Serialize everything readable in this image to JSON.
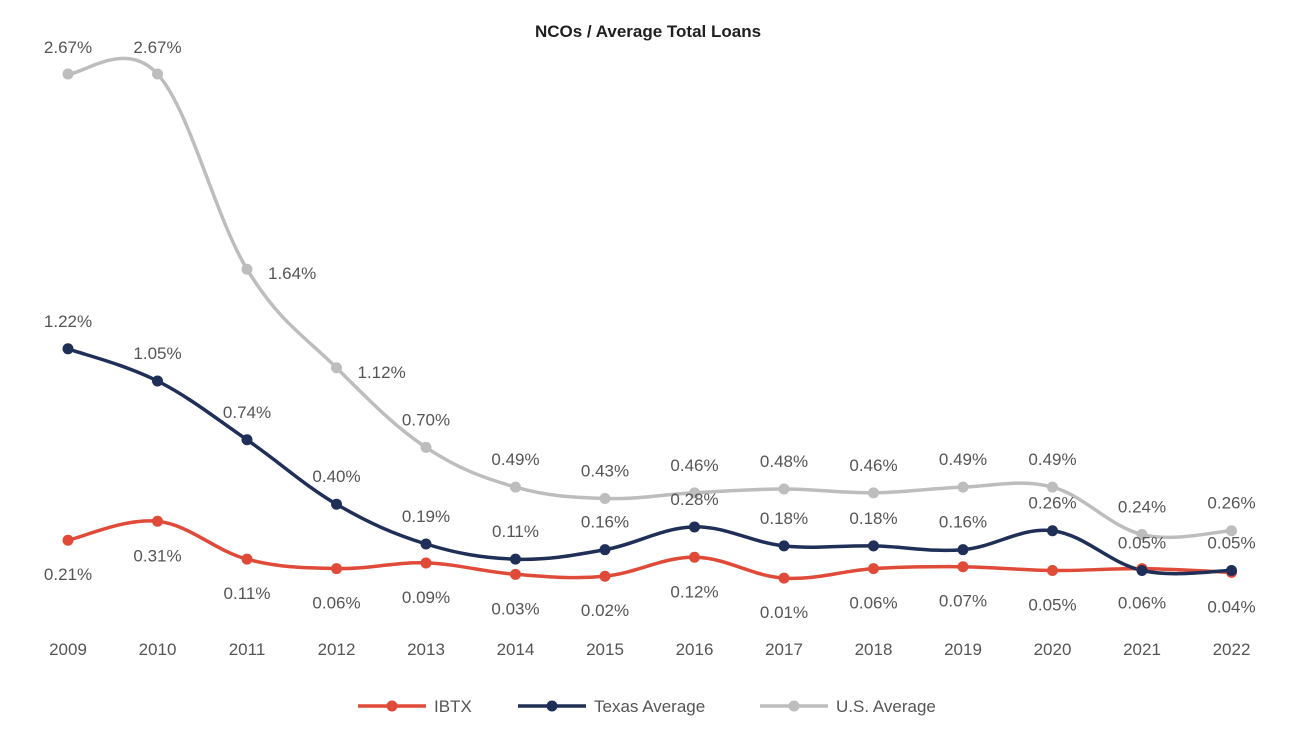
{
  "chart_data": {
    "type": "line",
    "title": "NCOs / Average Total Loans",
    "xlabel": "",
    "ylabel": "",
    "categories": [
      "2009",
      "2010",
      "2011",
      "2012",
      "2013",
      "2014",
      "2015",
      "2016",
      "2017",
      "2018",
      "2019",
      "2020",
      "2021",
      "2022"
    ],
    "ylim": [
      0,
      2.8
    ],
    "grid": false,
    "legend": "bottom",
    "series": [
      {
        "name": "IBTX",
        "color": "#e04a39",
        "values": [
          0.21,
          0.31,
          0.11,
          0.06,
          0.09,
          0.03,
          0.02,
          0.12,
          0.01,
          0.06,
          0.07,
          0.05,
          0.06,
          0.04
        ],
        "labels": [
          "0.21%",
          "0.31%",
          "0.11%",
          "0.06%",
          "0.09%",
          "0.03%",
          "0.02%",
          "0.12%",
          "0.01%",
          "0.06%",
          "0.07%",
          "0.05%",
          "0.06%",
          "0.04%"
        ]
      },
      {
        "name": "Texas Average",
        "color": "#1f2f57",
        "values": [
          1.22,
          1.05,
          0.74,
          0.4,
          0.19,
          0.11,
          0.16,
          0.28,
          0.18,
          0.18,
          0.16,
          0.26,
          0.05,
          0.05
        ],
        "labels": [
          "1.22%",
          "1.05%",
          "0.74%",
          "0.40%",
          "0.19%",
          "0.11%",
          "0.16%",
          "0.28%",
          "0.18%",
          "0.18%",
          "0.16%",
          "0.26%",
          "0.05%",
          "0.05%"
        ]
      },
      {
        "name": "U.S. Average",
        "color": "#bdbdbd",
        "values": [
          2.67,
          2.67,
          1.64,
          1.12,
          0.7,
          0.49,
          0.43,
          0.46,
          0.48,
          0.46,
          0.49,
          0.49,
          0.24,
          0.26
        ],
        "labels": [
          "2.67%",
          "2.67%",
          "1.64%",
          "1.12%",
          "0.70%",
          "0.49%",
          "0.43%",
          "0.46%",
          "0.48%",
          "0.46%",
          "0.49%",
          "0.49%",
          "0.24%",
          "0.26%"
        ]
      }
    ]
  }
}
